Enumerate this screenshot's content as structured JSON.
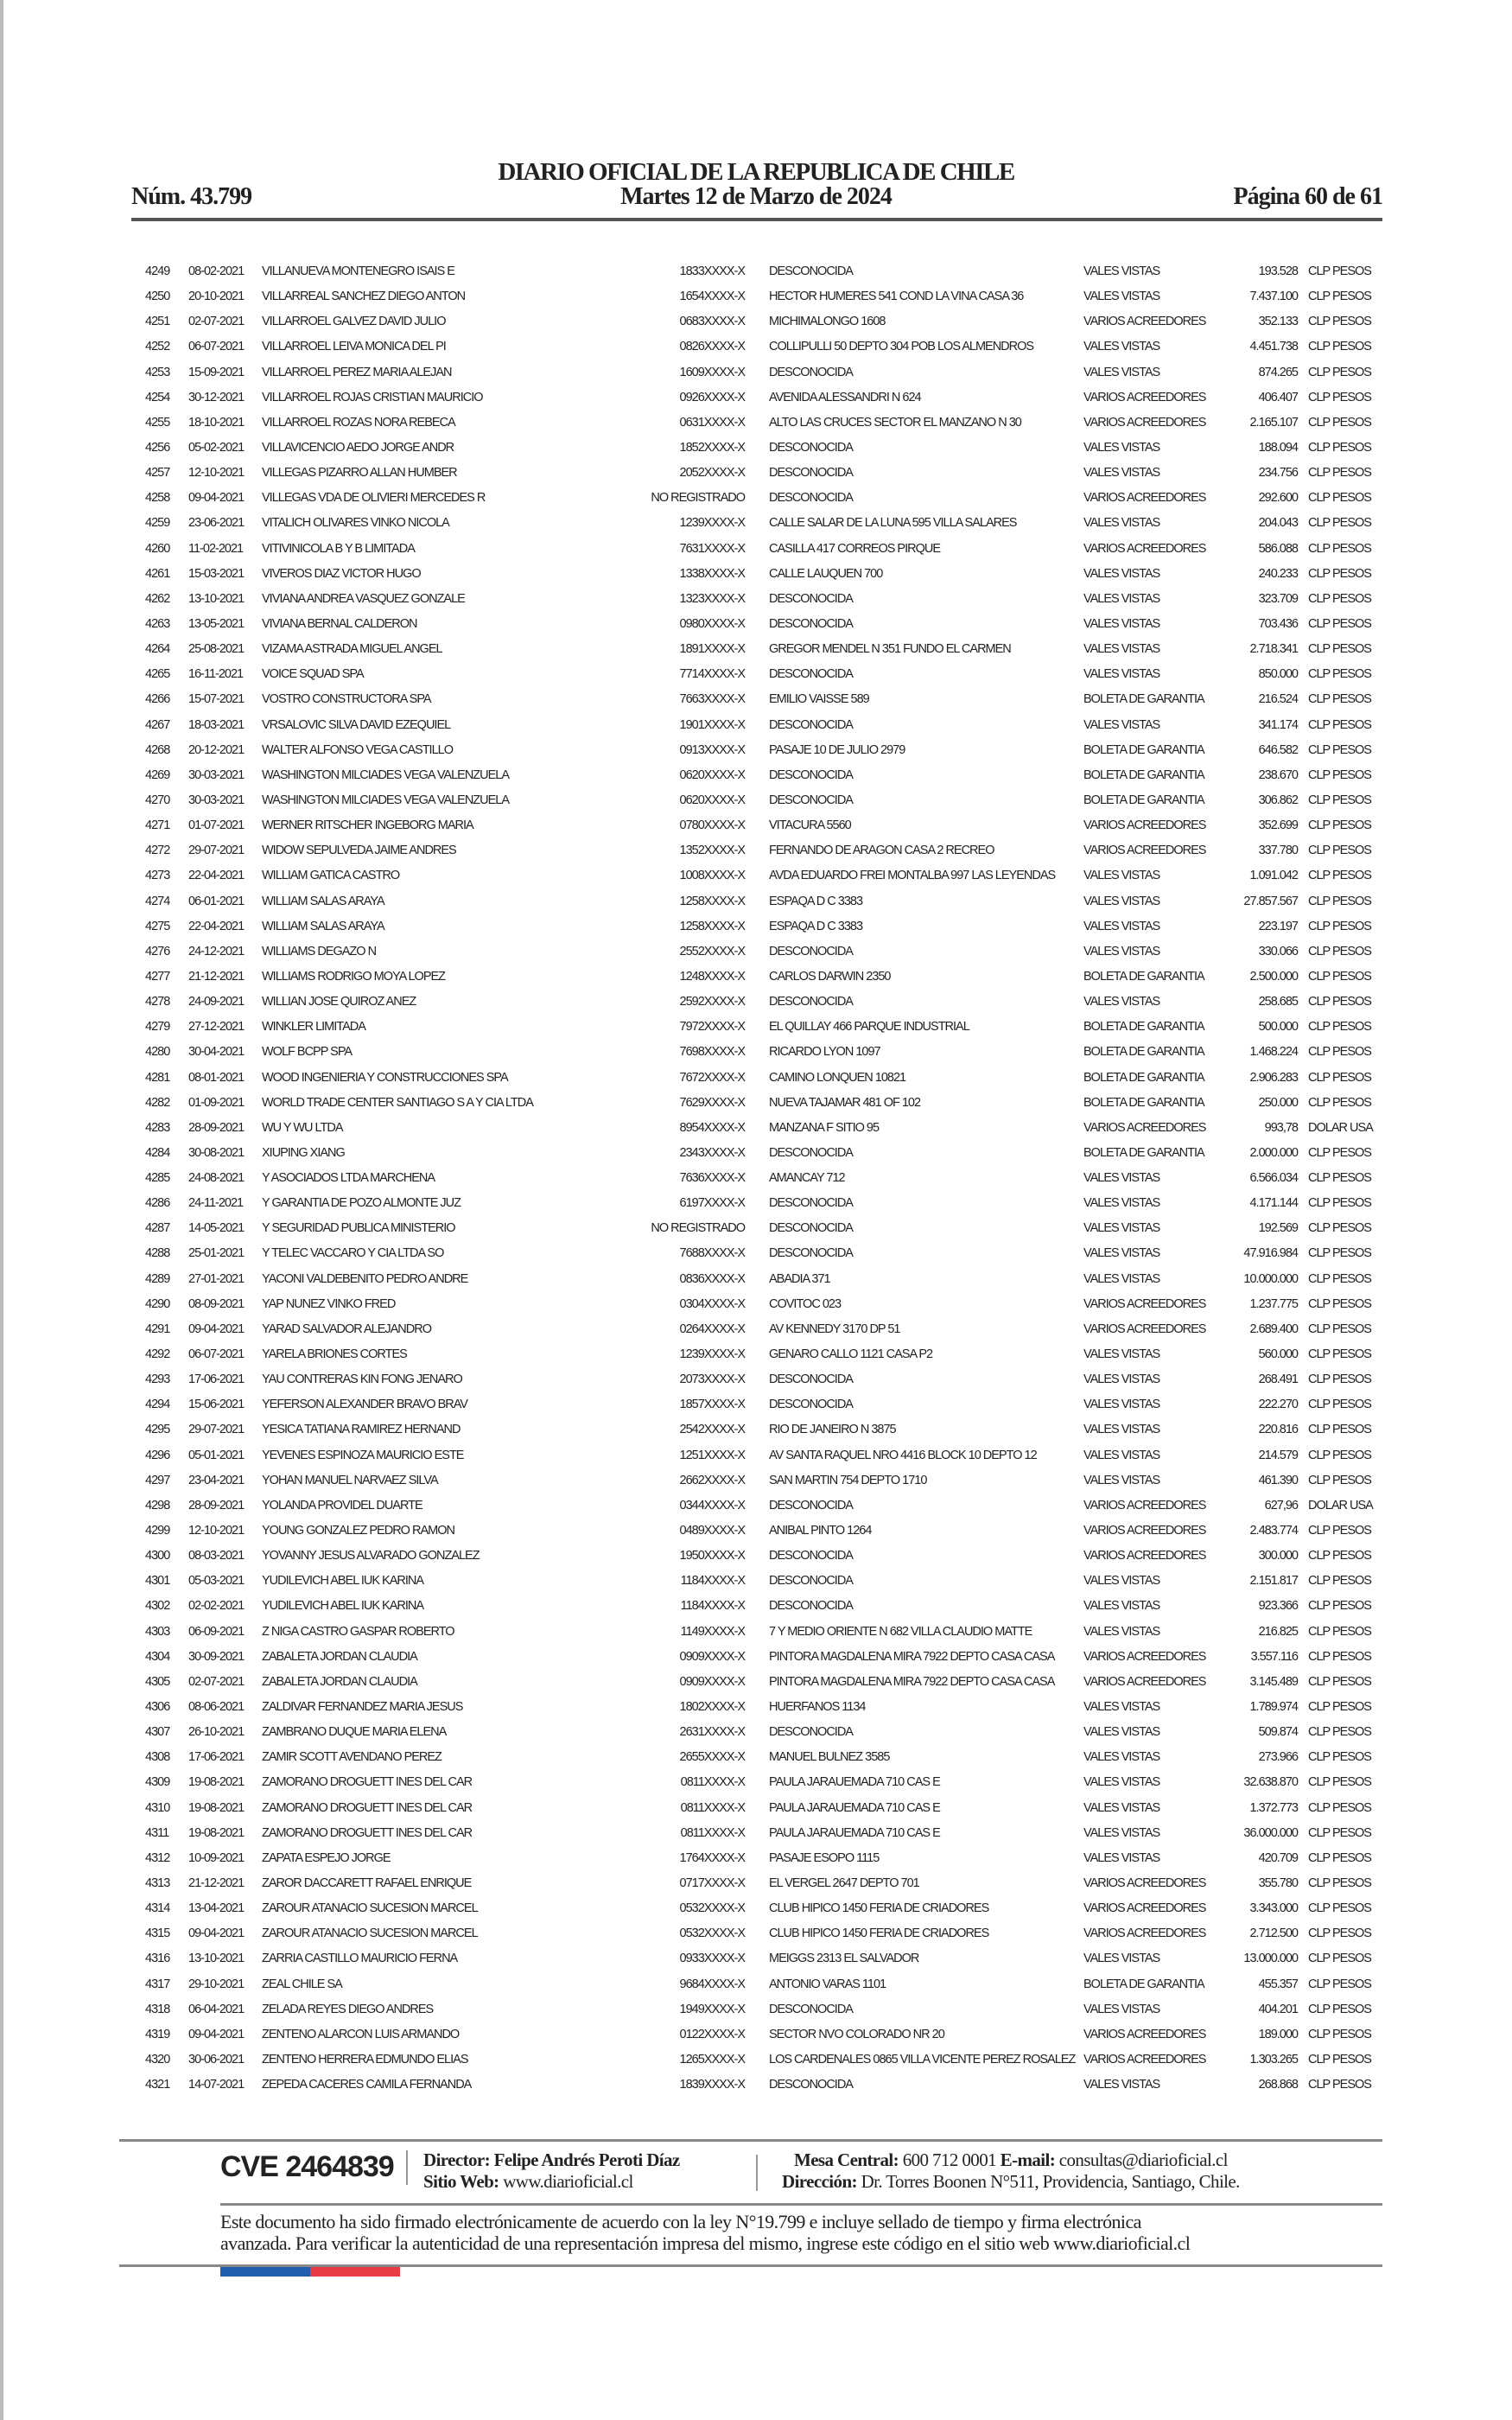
{
  "header": {
    "title": "DIARIO OFICIAL DE LA REPUBLICA DE CHILE",
    "issue_number": "Núm. 43.799",
    "date": "Martes 12 de Marzo de 2024",
    "page": "Página 60 de 61"
  },
  "rows": [
    [
      "4249",
      "08-02-2021",
      "VILLANUEVA MONTENEGRO ISAIS E",
      "1833XXXX-X",
      "DESCONOCIDA",
      "VALES VISTAS",
      "193.528",
      "CLP PESOS"
    ],
    [
      "4250",
      "20-10-2021",
      "VILLARREAL SANCHEZ DIEGO ANTON",
      "1654XXXX-X",
      "HECTOR HUMERES 541 COND LA VINA CASA 36",
      "VALES VISTAS",
      "7.437.100",
      "CLP PESOS"
    ],
    [
      "4251",
      "02-07-2021",
      "VILLARROEL GALVEZ DAVID JULIO",
      "0683XXXX-X",
      "MICHIMALONGO 1608",
      "VARIOS ACREEDORES",
      "352.133",
      "CLP PESOS"
    ],
    [
      "4252",
      "06-07-2021",
      "VILLARROEL LEIVA MONICA DEL PI",
      "0826XXXX-X",
      "COLLIPULLI 50 DEPTO 304 POB LOS ALMENDROS",
      "VALES VISTAS",
      "4.451.738",
      "CLP PESOS"
    ],
    [
      "4253",
      "15-09-2021",
      "VILLARROEL PEREZ MARIA ALEJAN",
      "1609XXXX-X",
      "DESCONOCIDA",
      "VALES VISTAS",
      "874.265",
      "CLP PESOS"
    ],
    [
      "4254",
      "30-12-2021",
      "VILLARROEL ROJAS CRISTIAN MAURICIO",
      "0926XXXX-X",
      "AVENIDA ALESSANDRI N 624",
      "VARIOS ACREEDORES",
      "406.407",
      "CLP PESOS"
    ],
    [
      "4255",
      "18-10-2021",
      "VILLARROEL ROZAS NORA REBECA",
      "0631XXXX-X",
      "ALTO LAS CRUCES SECTOR EL MANZANO N 30",
      "VARIOS ACREEDORES",
      "2.165.107",
      "CLP PESOS"
    ],
    [
      "4256",
      "05-02-2021",
      "VILLAVICENCIO AEDO JORGE ANDR",
      "1852XXXX-X",
      "DESCONOCIDA",
      "VALES VISTAS",
      "188.094",
      "CLP PESOS"
    ],
    [
      "4257",
      "12-10-2021",
      "VILLEGAS PIZARRO ALLAN HUMBER",
      "2052XXXX-X",
      "DESCONOCIDA",
      "VALES VISTAS",
      "234.756",
      "CLP PESOS"
    ],
    [
      "4258",
      "09-04-2021",
      "VILLEGAS VDA DE OLIVIERI MERCEDES R",
      "NO REGISTRADO",
      "DESCONOCIDA",
      "VARIOS ACREEDORES",
      "292.600",
      "CLP PESOS"
    ],
    [
      "4259",
      "23-06-2021",
      "VITALICH OLIVARES VINKO NICOLA",
      "1239XXXX-X",
      "CALLE SALAR DE LA LUNA 595 VILLA SALARES",
      "VALES VISTAS",
      "204.043",
      "CLP PESOS"
    ],
    [
      "4260",
      "11-02-2021",
      "VITIVINICOLA B Y B LIMITADA",
      "7631XXXX-X",
      "CASILLA 417 CORREOS PIRQUE",
      "VARIOS ACREEDORES",
      "586.088",
      "CLP PESOS"
    ],
    [
      "4261",
      "15-03-2021",
      "VIVEROS DIAZ VICTOR HUGO",
      "1338XXXX-X",
      "CALLE LAUQUEN 700",
      "VALES VISTAS",
      "240.233",
      "CLP PESOS"
    ],
    [
      "4262",
      "13-10-2021",
      "VIVIANA ANDREA VASQUEZ GONZALE",
      "1323XXXX-X",
      "DESCONOCIDA",
      "VALES VISTAS",
      "323.709",
      "CLP PESOS"
    ],
    [
      "4263",
      "13-05-2021",
      "VIVIANA BERNAL CALDERON",
      "0980XXXX-X",
      "DESCONOCIDA",
      "VALES VISTAS",
      "703.436",
      "CLP PESOS"
    ],
    [
      "4264",
      "25-08-2021",
      "VIZAMA ASTRADA MIGUEL ANGEL",
      "1891XXXX-X",
      "GREGOR MENDEL N 351 FUNDO EL CARMEN",
      "VALES VISTAS",
      "2.718.341",
      "CLP PESOS"
    ],
    [
      "4265",
      "16-11-2021",
      "VOICE SQUAD SPA",
      "7714XXXX-X",
      "DESCONOCIDA",
      "VALES VISTAS",
      "850.000",
      "CLP PESOS"
    ],
    [
      "4266",
      "15-07-2021",
      "VOSTRO CONSTRUCTORA SPA",
      "7663XXXX-X",
      "EMILIO VAISSE 589",
      "BOLETA DE GARANTIA",
      "216.524",
      "CLP PESOS"
    ],
    [
      "4267",
      "18-03-2021",
      "VRSALOVIC SILVA DAVID EZEQUIEL",
      "1901XXXX-X",
      "DESCONOCIDA",
      "VALES VISTAS",
      "341.174",
      "CLP PESOS"
    ],
    [
      "4268",
      "20-12-2021",
      "WALTER ALFONSO VEGA CASTILLO",
      "0913XXXX-X",
      "PASAJE 10 DE JULIO 2979",
      "BOLETA DE GARANTIA",
      "646.582",
      "CLP PESOS"
    ],
    [
      "4269",
      "30-03-2021",
      "WASHINGTON MILCIADES VEGA VALENZUELA",
      "0620XXXX-X",
      "DESCONOCIDA",
      "BOLETA DE GARANTIA",
      "238.670",
      "CLP PESOS"
    ],
    [
      "4270",
      "30-03-2021",
      "WASHINGTON MILCIADES VEGA VALENZUELA",
      "0620XXXX-X",
      "DESCONOCIDA",
      "BOLETA DE GARANTIA",
      "306.862",
      "CLP PESOS"
    ],
    [
      "4271",
      "01-07-2021",
      "WERNER RITSCHER INGEBORG MARIA",
      "0780XXXX-X",
      "VITACURA 5560",
      "VARIOS ACREEDORES",
      "352.699",
      "CLP PESOS"
    ],
    [
      "4272",
      "29-07-2021",
      "WIDOW SEPULVEDA JAIME ANDRES",
      "1352XXXX-X",
      "FERNANDO DE ARAGON CASA 2 RECREO",
      "VARIOS ACREEDORES",
      "337.780",
      "CLP PESOS"
    ],
    [
      "4273",
      "22-04-2021",
      "WILLIAM GATICA CASTRO",
      "1008XXXX-X",
      "AVDA EDUARDO FREI MONTALBA 997 LAS LEYENDAS",
      "VALES VISTAS",
      "1.091.042",
      "CLP PESOS"
    ],
    [
      "4274",
      "06-01-2021",
      "WILLIAM SALAS ARAYA",
      "1258XXXX-X",
      "ESPAQA D C 3383",
      "VALES VISTAS",
      "27.857.567",
      "CLP PESOS"
    ],
    [
      "4275",
      "22-04-2021",
      "WILLIAM SALAS ARAYA",
      "1258XXXX-X",
      "ESPAQA D C 3383",
      "VALES VISTAS",
      "223.197",
      "CLP PESOS"
    ],
    [
      "4276",
      "24-12-2021",
      "WILLIAMS DEGAZO N",
      "2552XXXX-X",
      "DESCONOCIDA",
      "VALES VISTAS",
      "330.066",
      "CLP PESOS"
    ],
    [
      "4277",
      "21-12-2021",
      "WILLIAMS RODRIGO MOYA LOPEZ",
      "1248XXXX-X",
      "CARLOS DARWIN 2350",
      "BOLETA DE GARANTIA",
      "2.500.000",
      "CLP PESOS"
    ],
    [
      "4278",
      "24-09-2021",
      "WILLIAN JOSE QUIROZ ANEZ",
      "2592XXXX-X",
      "DESCONOCIDA",
      "VALES VISTAS",
      "258.685",
      "CLP PESOS"
    ],
    [
      "4279",
      "27-12-2021",
      "WINKLER LIMITADA",
      "7972XXXX-X",
      "EL QUILLAY 466 PARQUE INDUSTRIAL",
      "BOLETA DE GARANTIA",
      "500.000",
      "CLP PESOS"
    ],
    [
      "4280",
      "30-04-2021",
      "WOLF BCPP SPA",
      "7698XXXX-X",
      "RICARDO LYON 1097",
      "BOLETA DE GARANTIA",
      "1.468.224",
      "CLP PESOS"
    ],
    [
      "4281",
      "08-01-2021",
      "WOOD INGENIERIA Y CONSTRUCCIONES SPA",
      "7672XXXX-X",
      "CAMINO LONQUEN 10821",
      "BOLETA DE GARANTIA",
      "2.906.283",
      "CLP PESOS"
    ],
    [
      "4282",
      "01-09-2021",
      "WORLD TRADE CENTER SANTIAGO S A Y CIA LTDA",
      "7629XXXX-X",
      "NUEVA TAJAMAR 481 OF 102",
      "BOLETA DE GARANTIA",
      "250.000",
      "CLP PESOS"
    ],
    [
      "4283",
      "28-09-2021",
      "WU Y WU LTDA",
      "8954XXXX-X",
      "MANZANA F SITIO 95",
      "VARIOS ACREEDORES",
      "993,78",
      "DOLAR USA"
    ],
    [
      "4284",
      "30-08-2021",
      "XIUPING XIANG",
      "2343XXXX-X",
      "DESCONOCIDA",
      "BOLETA DE GARANTIA",
      "2.000.000",
      "CLP PESOS"
    ],
    [
      "4285",
      "24-08-2021",
      "Y ASOCIADOS LTDA MARCHENA",
      "7636XXXX-X",
      "AMANCAY 712",
      "VALES VISTAS",
      "6.566.034",
      "CLP PESOS"
    ],
    [
      "4286",
      "24-11-2021",
      "Y GARANTIA DE POZO ALMONTE JUZ",
      "6197XXXX-X",
      "DESCONOCIDA",
      "VALES VISTAS",
      "4.171.144",
      "CLP PESOS"
    ],
    [
      "4287",
      "14-05-2021",
      "Y SEGURIDAD PUBLICA MINISTERIO",
      "NO REGISTRADO",
      "DESCONOCIDA",
      "VALES VISTAS",
      "192.569",
      "CLP PESOS"
    ],
    [
      "4288",
      "25-01-2021",
      "Y TELEC  VACCARO Y CIA LTDA SO",
      "7688XXXX-X",
      "DESCONOCIDA",
      "VALES VISTAS",
      "47.916.984",
      "CLP PESOS"
    ],
    [
      "4289",
      "27-01-2021",
      "YACONI VALDEBENITO PEDRO ANDRE",
      "0836XXXX-X",
      "ABADIA 371",
      "VALES VISTAS",
      "10.000.000",
      "CLP PESOS"
    ],
    [
      "4290",
      "08-09-2021",
      "YAP NUNEZ VINKO FRED",
      "0304XXXX-X",
      "COVITOC 023",
      "VARIOS ACREEDORES",
      "1.237.775",
      "CLP PESOS"
    ],
    [
      "4291",
      "09-04-2021",
      "YARAD SALVADOR ALEJANDRO",
      "0264XXXX-X",
      "AV KENNEDY 3170 DP 51",
      "VARIOS ACREEDORES",
      "2.689.400",
      "CLP PESOS"
    ],
    [
      "4292",
      "06-07-2021",
      "YARELA BRIONES CORTES",
      "1239XXXX-X",
      "GENARO CALLO 1121 CASA P2",
      "VALES VISTAS",
      "560.000",
      "CLP PESOS"
    ],
    [
      "4293",
      "17-06-2021",
      "YAU CONTRERAS KIN FONG JENARO",
      "2073XXXX-X",
      "DESCONOCIDA",
      "VALES VISTAS",
      "268.491",
      "CLP PESOS"
    ],
    [
      "4294",
      "15-06-2021",
      "YEFERSON ALEXANDER BRAVO BRAV",
      "1857XXXX-X",
      "DESCONOCIDA",
      "VALES VISTAS",
      "222.270",
      "CLP PESOS"
    ],
    [
      "4295",
      "29-07-2021",
      "YESICA TATIANA RAMIREZ HERNAND",
      "2542XXXX-X",
      "RIO DE JANEIRO N 3875",
      "VALES VISTAS",
      "220.816",
      "CLP PESOS"
    ],
    [
      "4296",
      "05-01-2021",
      "YEVENES ESPINOZA MAURICIO ESTE",
      "1251XXXX-X",
      "AV SANTA RAQUEL NRO 4416 BLOCK 10 DEPTO 12",
      "VALES VISTAS",
      "214.579",
      "CLP PESOS"
    ],
    [
      "4297",
      "23-04-2021",
      "YOHAN MANUEL NARVAEZ SILVA",
      "2662XXXX-X",
      "SAN MARTIN 754 DEPTO 1710",
      "VALES VISTAS",
      "461.390",
      "CLP PESOS"
    ],
    [
      "4298",
      "28-09-2021",
      "YOLANDA PROVIDEL DUARTE",
      "0344XXXX-X",
      "DESCONOCIDA",
      "VARIOS ACREEDORES",
      "627,96",
      "DOLAR USA"
    ],
    [
      "4299",
      "12-10-2021",
      "YOUNG GONZALEZ PEDRO RAMON",
      "0489XXXX-X",
      "ANIBAL PINTO 1264",
      "VARIOS ACREEDORES",
      "2.483.774",
      "CLP PESOS"
    ],
    [
      "4300",
      "08-03-2021",
      "YOVANNY JESUS ALVARADO GONZALEZ",
      "1950XXXX-X",
      "DESCONOCIDA",
      "VARIOS ACREEDORES",
      "300.000",
      "CLP PESOS"
    ],
    [
      "4301",
      "05-03-2021",
      "YUDILEVICH ABEL IUK KARINA",
      "1184XXXX-X",
      "DESCONOCIDA",
      "VALES VISTAS",
      "2.151.817",
      "CLP PESOS"
    ],
    [
      "4302",
      "02-02-2021",
      "YUDILEVICH ABEL IUK KARINA",
      "1184XXXX-X",
      "DESCONOCIDA",
      "VALES VISTAS",
      "923.366",
      "CLP PESOS"
    ],
    [
      "4303",
      "06-09-2021",
      "Z NIGA CASTRO  GASPAR ROBERTO",
      "1149XXXX-X",
      "7 Y MEDIO ORIENTE N 682 VILLA CLAUDIO MATTE",
      "VALES VISTAS",
      "216.825",
      "CLP PESOS"
    ],
    [
      "4304",
      "30-09-2021",
      "ZABALETA JORDAN CLAUDIA",
      "0909XXXX-X",
      "PINTORA MAGDALENA MIRA 7922 DEPTO CASA CASA",
      "VARIOS ACREEDORES",
      "3.557.116",
      "CLP PESOS"
    ],
    [
      "4305",
      "02-07-2021",
      "ZABALETA JORDAN CLAUDIA",
      "0909XXXX-X",
      "PINTORA MAGDALENA MIRA 7922 DEPTO CASA CASA",
      "VARIOS ACREEDORES",
      "3.145.489",
      "CLP PESOS"
    ],
    [
      "4306",
      "08-06-2021",
      "ZALDIVAR FERNANDEZ MARIA JESUS",
      "1802XXXX-X",
      "HUERFANOS 1134",
      "VALES VISTAS",
      "1.789.974",
      "CLP PESOS"
    ],
    [
      "4307",
      "26-10-2021",
      "ZAMBRANO DUQUE MARIA ELENA",
      "2631XXXX-X",
      "DESCONOCIDA",
      "VALES VISTAS",
      "509.874",
      "CLP PESOS"
    ],
    [
      "4308",
      "17-06-2021",
      "ZAMIR SCOTT AVENDANO PEREZ",
      "2655XXXX-X",
      "MANUEL BULNEZ 3585",
      "VALES VISTAS",
      "273.966",
      "CLP PESOS"
    ],
    [
      "4309",
      "19-08-2021",
      "ZAMORANO DROGUETT INES DEL CAR",
      "0811XXXX-X",
      "PAULA JARAUEMADA 710 CAS E",
      "VALES VISTAS",
      "32.638.870",
      "CLP PESOS"
    ],
    [
      "4310",
      "19-08-2021",
      "ZAMORANO DROGUETT INES DEL CAR",
      "0811XXXX-X",
      "PAULA JARAUEMADA 710 CAS E",
      "VALES VISTAS",
      "1.372.773",
      "CLP PESOS"
    ],
    [
      "4311",
      "19-08-2021",
      "ZAMORANO DROGUETT INES DEL CAR",
      "0811XXXX-X",
      "PAULA JARAUEMADA 710 CAS E",
      "VALES VISTAS",
      "36.000.000",
      "CLP PESOS"
    ],
    [
      "4312",
      "10-09-2021",
      "ZAPATA ESPEJO JORGE",
      "1764XXXX-X",
      "PASAJE ESOPO 1115",
      "VALES VISTAS",
      "420.709",
      "CLP PESOS"
    ],
    [
      "4313",
      "21-12-2021",
      "ZAROR DACCARETT RAFAEL ENRIQUE",
      "0717XXXX-X",
      "EL VERGEL 2647 DEPTO 701",
      "VARIOS ACREEDORES",
      "355.780",
      "CLP PESOS"
    ],
    [
      "4314",
      "13-04-2021",
      "ZAROUR ATANACIO SUCESION MARCEL",
      "0532XXXX-X",
      "CLUB HIPICO 1450 FERIA DE CRIADORES",
      "VARIOS ACREEDORES",
      "3.343.000",
      "CLP PESOS"
    ],
    [
      "4315",
      "09-04-2021",
      "ZAROUR ATANACIO SUCESION MARCEL",
      "0532XXXX-X",
      "CLUB HIPICO 1450 FERIA DE CRIADORES",
      "VARIOS ACREEDORES",
      "2.712.500",
      "CLP PESOS"
    ],
    [
      "4316",
      "13-10-2021",
      "ZARRIA CASTILLO MAURICIO FERNA",
      "0933XXXX-X",
      "MEIGGS 2313 EL SALVADOR",
      "VALES VISTAS",
      "13.000.000",
      "CLP PESOS"
    ],
    [
      "4317",
      "29-10-2021",
      "ZEAL CHILE SA",
      "9684XXXX-X",
      "ANTONIO VARAS 1101",
      "BOLETA DE GARANTIA",
      "455.357",
      "CLP PESOS"
    ],
    [
      "4318",
      "06-04-2021",
      "ZELADA REYES DIEGO ANDRES",
      "1949XXXX-X",
      "DESCONOCIDA",
      "VALES VISTAS",
      "404.201",
      "CLP PESOS"
    ],
    [
      "4319",
      "09-04-2021",
      "ZENTENO ALARCON LUIS ARMANDO",
      "0122XXXX-X",
      "SECTOR NVO COLORADO NR 20",
      "VARIOS ACREEDORES",
      "189.000",
      "CLP PESOS"
    ],
    [
      "4320",
      "30-06-2021",
      "ZENTENO HERRERA EDMUNDO ELIAS",
      "1265XXXX-X",
      "LOS CARDENALES 0865 VILLA VICENTE PEREZ ROSALEZ",
      "VARIOS ACREEDORES",
      "1.303.265",
      "CLP PESOS"
    ],
    [
      "4321",
      "14-07-2021",
      "ZEPEDA CACERES CAMILA FERNANDA",
      "1839XXXX-X",
      "DESCONOCIDA",
      "VALES VISTAS",
      "268.868",
      "CLP PESOS"
    ]
  ],
  "footer": {
    "cve": "CVE 2464839",
    "director_label": "Director:",
    "director": "Felipe Andrés Peroti Díaz",
    "web_label": "Sitio Web:",
    "web": "www.diarioficial.cl",
    "phone_label": "Mesa Central:",
    "phone": "600 712 0001",
    "email_label": "E-mail:",
    "email": "consultas@diarioficial.cl",
    "address_label": "Dirección:",
    "address": "Dr. Torres Boonen N°511, Providencia, Santiago, Chile.",
    "disclaimer_1": "Este documento ha sido firmado electrónicamente de acuerdo con la ley N°19.799 e incluye sellado de tiempo y firma electrónica",
    "disclaimer_2": "avanzada. Para verificar la autenticidad de una representación impresa del mismo, ingrese este código en el sitio web www.diarioficial.cl"
  },
  "colors": {
    "flag_blue": "#1f5fae",
    "flag_red": "#e63a46",
    "rule": "#555555"
  }
}
